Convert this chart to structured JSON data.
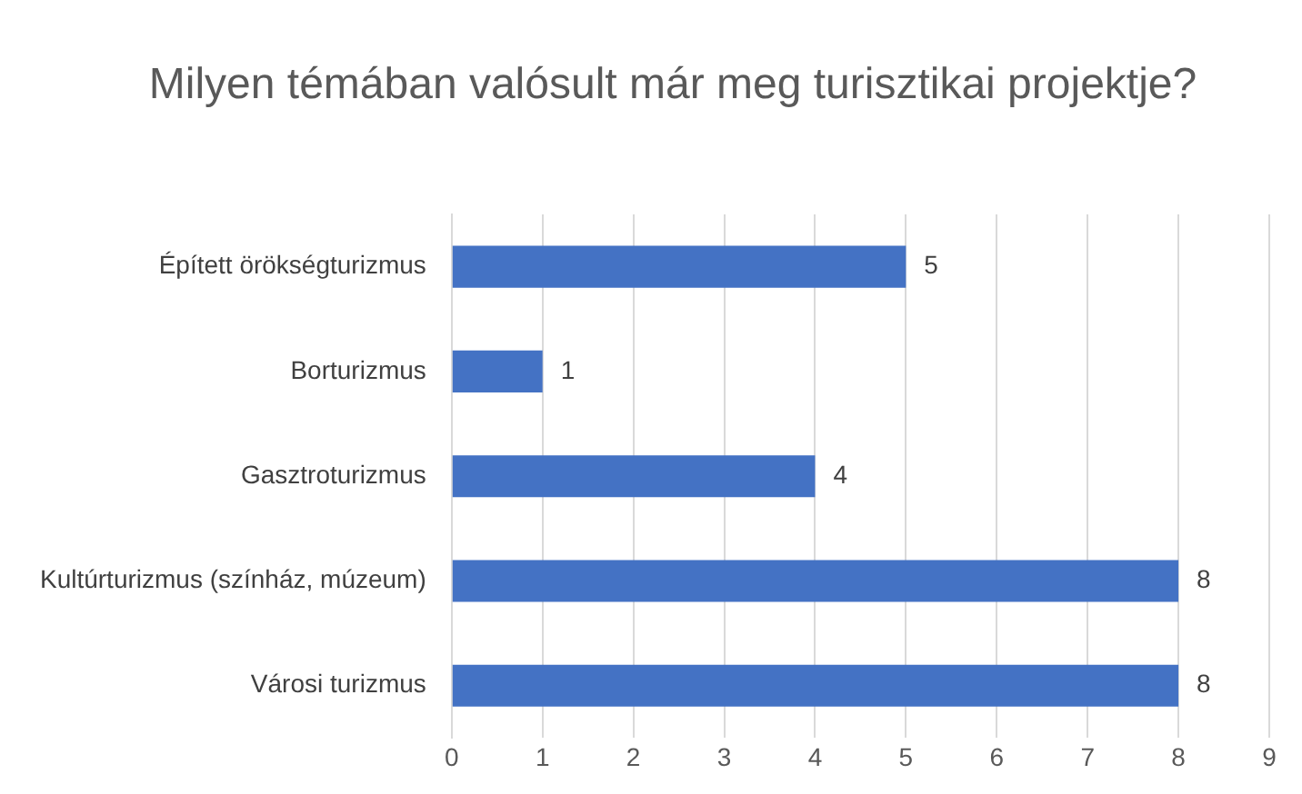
{
  "chart_data": {
    "type": "bar",
    "orientation": "horizontal",
    "title": "Milyen témában valósult már meg turisztikai projektje?",
    "categories": [
      "Épített örökségturizmus",
      "Borturizmus",
      "Gasztroturizmus",
      "Kultúrturizmus (színház, múzeum)",
      "Városi turizmus"
    ],
    "values": [
      5,
      1,
      4,
      8,
      8
    ],
    "color": "#4472c4",
    "xlim": [
      0,
      9
    ],
    "xticks": [
      0,
      1,
      2,
      3,
      4,
      5,
      6,
      7,
      8,
      9
    ],
    "grid": "x",
    "data_labels": true
  }
}
